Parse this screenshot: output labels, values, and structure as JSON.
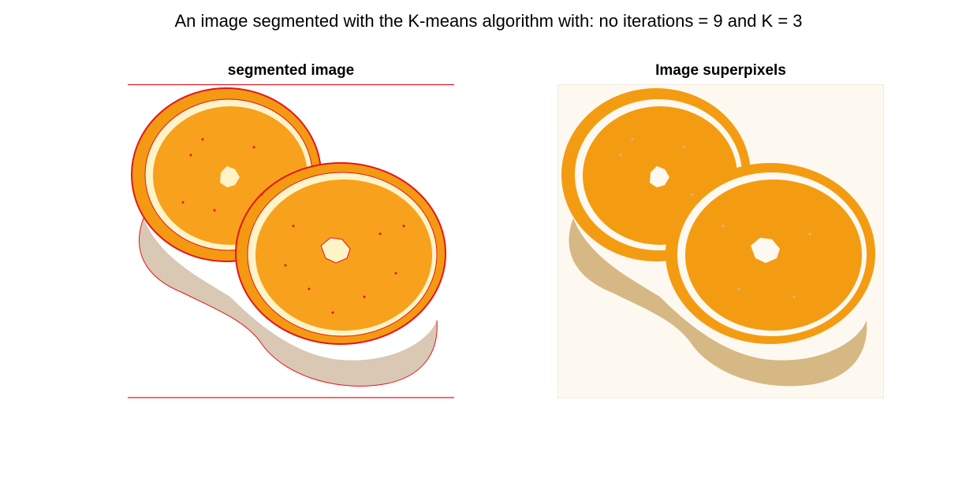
{
  "figure": {
    "suptitle": "An image segmented with the K-means algorithm with: no iterations = 9 and K = 3"
  },
  "panels": [
    {
      "title": "segmented image",
      "content": "photo of two orange halves with red segment boundary contours"
    },
    {
      "title": "Image superpixels",
      "content": "K-means label map with 3 color clusters"
    }
  ],
  "colors": {
    "background": "#ffffff",
    "boundary": "#e8141c",
    "orange_flesh": "#f79a10",
    "orange_rind": "#f3a21e",
    "pith": "#fff4c8",
    "shadow": "#d4b684",
    "cluster_orange": "#f39c12",
    "cluster_shadow": "#d6b884",
    "cluster_background": "#fdf9f1"
  }
}
